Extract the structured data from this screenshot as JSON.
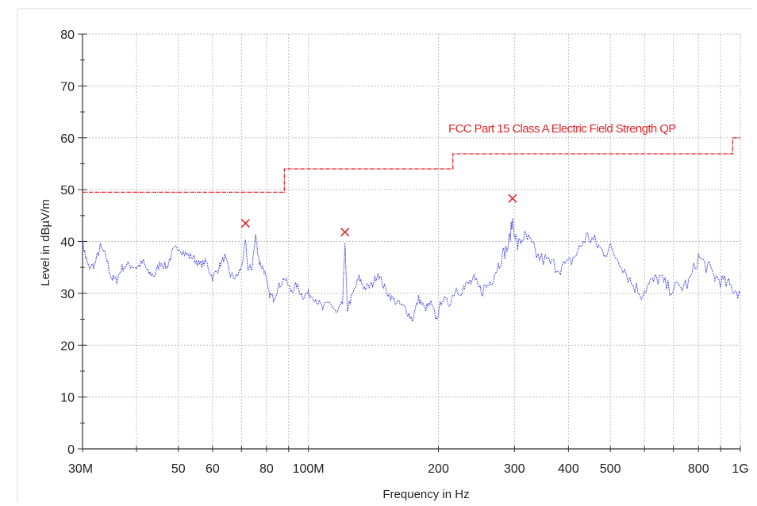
{
  "chart_data": {
    "type": "line",
    "title": "",
    "xlabel": "Frequency in Hz",
    "ylabel": "Level in dBµV/m",
    "x_scale": "log",
    "xlim": [
      30000000,
      1000000000
    ],
    "ylim": [
      0,
      80
    ],
    "grid": true,
    "y_ticks": [
      "0",
      "10",
      "20",
      "30",
      "40",
      "50",
      "60",
      "70",
      "80"
    ],
    "x_ticks": [
      {
        "value": 30000000,
        "label": "30M"
      },
      {
        "value": 50000000,
        "label": "50"
      },
      {
        "value": 60000000,
        "label": "60"
      },
      {
        "value": 80000000,
        "label": "80"
      },
      {
        "value": 100000000,
        "label": "100M"
      },
      {
        "value": 200000000,
        "label": "200"
      },
      {
        "value": 300000000,
        "label": "300"
      },
      {
        "value": 400000000,
        "label": "400"
      },
      {
        "value": 500000000,
        "label": "500"
      },
      {
        "value": 800000000,
        "label": "800"
      },
      {
        "value": 1000000000,
        "label": "1G"
      }
    ],
    "limit_line": {
      "name": "FCC Part 15 Class A Electric Field Strength QP",
      "color": "#e0262a",
      "points": [
        [
          30000000,
          49.5
        ],
        [
          88000000,
          49.5
        ],
        [
          88000000,
          54
        ],
        [
          216000000,
          54
        ],
        [
          216000000,
          56.9
        ],
        [
          960000000,
          56.9
        ],
        [
          960000000,
          60
        ],
        [
          1000000000,
          60
        ]
      ]
    },
    "series": [
      {
        "color": "#4a4ae0",
        "points": [
          [
            30000000,
            40
          ],
          [
            30500000,
            37
          ],
          [
            31000000,
            35
          ],
          [
            32000000,
            35.5
          ],
          [
            33000000,
            39
          ],
          [
            34000000,
            37
          ],
          [
            35000000,
            33
          ],
          [
            36000000,
            32.5
          ],
          [
            37000000,
            35
          ],
          [
            38500000,
            35.5
          ],
          [
            40000000,
            35
          ],
          [
            41500000,
            36
          ],
          [
            42500000,
            34
          ],
          [
            44000000,
            33.5
          ],
          [
            45500000,
            36
          ],
          [
            47000000,
            35
          ],
          [
            48500000,
            38
          ],
          [
            50000000,
            39
          ],
          [
            52000000,
            37.5
          ],
          [
            54000000,
            37
          ],
          [
            56000000,
            35.5
          ],
          [
            58000000,
            36
          ],
          [
            60000000,
            33
          ],
          [
            62000000,
            35
          ],
          [
            64000000,
            37
          ],
          [
            66000000,
            33.5
          ],
          [
            68000000,
            33
          ],
          [
            70000000,
            35
          ],
          [
            71500000,
            40
          ],
          [
            72500000,
            34.5
          ],
          [
            74000000,
            35
          ],
          [
            75500000,
            41
          ],
          [
            77000000,
            36
          ],
          [
            79000000,
            34.5
          ],
          [
            81000000,
            30
          ],
          [
            83000000,
            29
          ],
          [
            85000000,
            31
          ],
          [
            88000000,
            33
          ],
          [
            91000000,
            30.5
          ],
          [
            94000000,
            31.5
          ],
          [
            97000000,
            29.5
          ],
          [
            100000000,
            30
          ],
          [
            104000000,
            29
          ],
          [
            108000000,
            27
          ],
          [
            112000000,
            28.5
          ],
          [
            116000000,
            26
          ],
          [
            120000000,
            28
          ],
          [
            121500000,
            40
          ],
          [
            123000000,
            27
          ],
          [
            127000000,
            30
          ],
          [
            131000000,
            33
          ],
          [
            135000000,
            31
          ],
          [
            140000000,
            31.5
          ],
          [
            145000000,
            34
          ],
          [
            150000000,
            31
          ],
          [
            156000000,
            29
          ],
          [
            162000000,
            28
          ],
          [
            168000000,
            27
          ],
          [
            174000000,
            25
          ],
          [
            180000000,
            29
          ],
          [
            186000000,
            27
          ],
          [
            192000000,
            28
          ],
          [
            198000000,
            25
          ],
          [
            204000000,
            29
          ],
          [
            212000000,
            28
          ],
          [
            220000000,
            31
          ],
          [
            230000000,
            31
          ],
          [
            240000000,
            32.5
          ],
          [
            250000000,
            30.5
          ],
          [
            260000000,
            31.5
          ],
          [
            270000000,
            34
          ],
          [
            280000000,
            37
          ],
          [
            290000000,
            39
          ],
          [
            297000000,
            44
          ],
          [
            305000000,
            39
          ],
          [
            315000000,
            41
          ],
          [
            325000000,
            40
          ],
          [
            340000000,
            37
          ],
          [
            360000000,
            36
          ],
          [
            380000000,
            35
          ],
          [
            400000000,
            35.5
          ],
          [
            420000000,
            38
          ],
          [
            440000000,
            41
          ],
          [
            460000000,
            40
          ],
          [
            480000000,
            38
          ],
          [
            500000000,
            38.5
          ],
          [
            530000000,
            36
          ],
          [
            560000000,
            32
          ],
          [
            590000000,
            30
          ],
          [
            620000000,
            32
          ],
          [
            650000000,
            33
          ],
          [
            680000000,
            31
          ],
          [
            720000000,
            31
          ],
          [
            760000000,
            32
          ],
          [
            800000000,
            37
          ],
          [
            840000000,
            35
          ],
          [
            880000000,
            33
          ],
          [
            920000000,
            32
          ],
          [
            960000000,
            31
          ],
          [
            1000000000,
            30
          ]
        ]
      }
    ],
    "peak_markers": [
      [
        71500000,
        43.5
      ],
      [
        121500000,
        41.8
      ],
      [
        297000000,
        48.3
      ]
    ]
  }
}
